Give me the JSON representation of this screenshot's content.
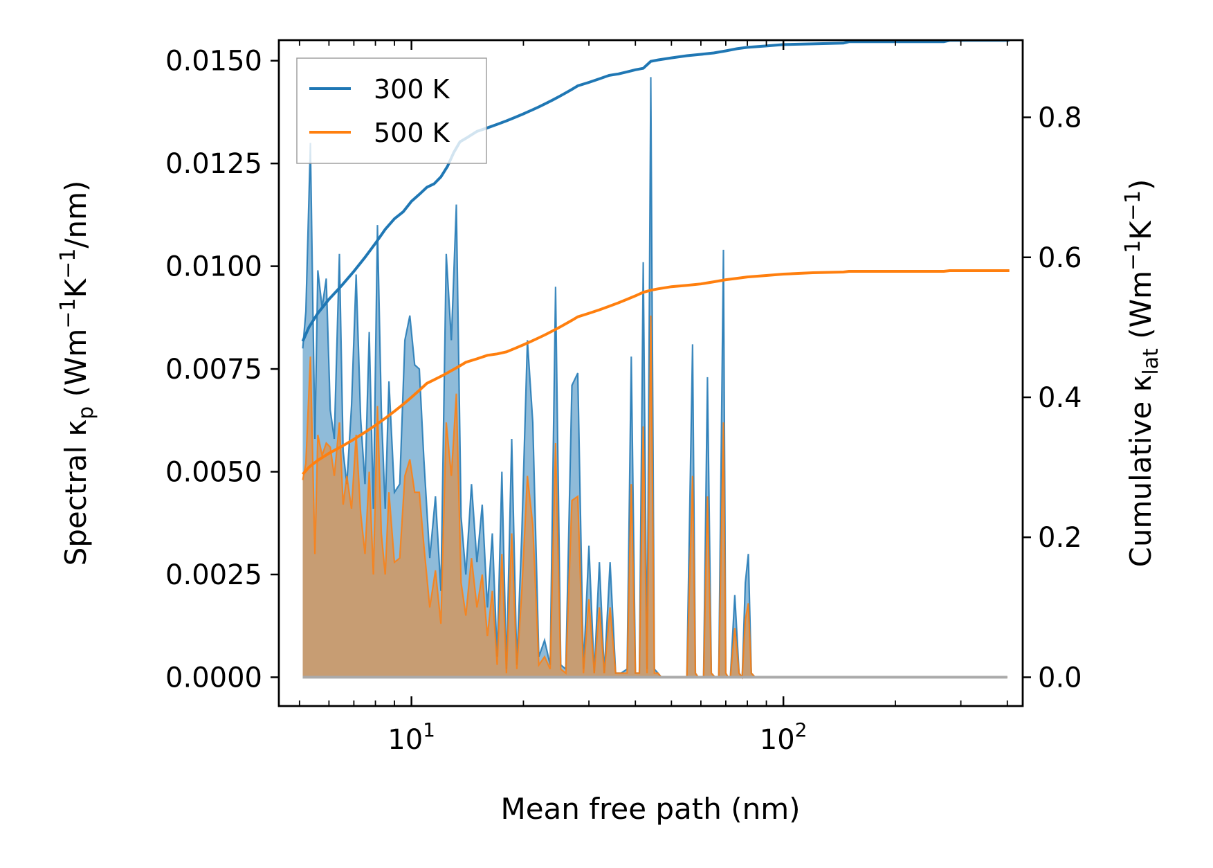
{
  "chart_data": {
    "type": "line",
    "x_scale": "log",
    "xlabel": "Mean free path (nm)",
    "ylabel_left": "Spectral κ_p (Wm⁻¹K⁻¹/nm)",
    "ylabel_left_parts": {
      "pre": "Spectral κ",
      "sub": "p",
      "post1": " (Wm",
      "sup1": "−1",
      "mid": "K",
      "sup2": "−1",
      "post2": "/nm)"
    },
    "ylabel_right": "Cumulative κ_lat (Wm⁻¹K⁻¹)",
    "ylabel_right_parts": {
      "pre": "Cumulative κ",
      "sub": "lat",
      "post1": " (Wm",
      "sup1": "−1",
      "mid": "K",
      "sup2": "−1",
      "post2": ")"
    },
    "xlim": [
      4.4,
      440
    ],
    "ylim_left": [
      -0.0007,
      0.0155
    ],
    "ylim_right": [
      -0.0411,
      0.9103
    ],
    "x_ticks": [
      10,
      100
    ],
    "x_tick_labels": [
      {
        "base": "10",
        "exp": "1"
      },
      {
        "base": "10",
        "exp": "2"
      }
    ],
    "y_ticks_left": [
      0.0,
      0.0025,
      0.005,
      0.0075,
      0.01,
      0.0125,
      0.015
    ],
    "y_tick_labels_left": [
      "0.0000",
      "0.0025",
      "0.0050",
      "0.0075",
      "0.0100",
      "0.0125",
      "0.0150"
    ],
    "y_ticks_right": [
      0.0,
      0.2,
      0.4,
      0.6,
      0.8
    ],
    "y_tick_labels_right": [
      "0.0",
      "0.2",
      "0.4",
      "0.6",
      "0.8"
    ],
    "legend": {
      "position": "top-left",
      "entries": [
        {
          "name": "300 K",
          "color": "#1f77b4"
        },
        {
          "name": "500 K",
          "color": "#ff7f0e"
        }
      ]
    },
    "colors": {
      "300K": "#1f77b4",
      "500K": "#ff7f0e",
      "fill_300K": "#1f77b4",
      "fill_500K": "#ff7f0e",
      "baseline": "#aaaaaa"
    },
    "spectral_300K": {
      "x": [
        5.1,
        5.2,
        5.35,
        5.5,
        5.6,
        5.75,
        5.9,
        6.05,
        6.2,
        6.4,
        6.55,
        6.7,
        6.9,
        7.1,
        7.3,
        7.5,
        7.7,
        7.9,
        8.1,
        8.3,
        8.5,
        8.7,
        9.0,
        9.3,
        9.6,
        9.9,
        10.2,
        10.5,
        10.8,
        11.2,
        11.6,
        12.0,
        12.4,
        12.8,
        13.2,
        13.6,
        14.0,
        14.5,
        15.0,
        15.5,
        16.0,
        16.5,
        17.0,
        17.5,
        18.0,
        18.6,
        19.2,
        19.8,
        20.5,
        21.2,
        22.0,
        22.8,
        23.6,
        24.4,
        25.2,
        26.0,
        27.0,
        28.0,
        29.0,
        30.0,
        31.0,
        32.0,
        33.0,
        34.2,
        35.4,
        36.6,
        38.0,
        39.0,
        40.0,
        41.0,
        42.0,
        43.0,
        44.0,
        45.0,
        46.0,
        47.0,
        48.0,
        55.0,
        57.0,
        58.0,
        59.0,
        61.0,
        62.5,
        64.0,
        65.5,
        67.0,
        69.0,
        70.0,
        71.0,
        72.0,
        74.0,
        76.0,
        77.5,
        79.0,
        80.5,
        82.0,
        84.0,
        86.0,
        88.0,
        90.0,
        92.0,
        94.0,
        96.0,
        98.0,
        145.0,
        148.0,
        150.0,
        152.0,
        155.0,
        270.0,
        274.0,
        278.0,
        282.0,
        286.0,
        380.0,
        388.0,
        394.0,
        400.0
      ],
      "y": [
        0.008,
        0.0089,
        0.013,
        0.0058,
        0.0099,
        0.009,
        0.0097,
        0.0065,
        0.0058,
        0.0103,
        0.0055,
        0.0047,
        0.0066,
        0.0098,
        0.0063,
        0.0047,
        0.0084,
        0.0041,
        0.011,
        0.0065,
        0.0041,
        0.0072,
        0.0045,
        0.0047,
        0.0082,
        0.0088,
        0.0076,
        0.0075,
        0.0053,
        0.0029,
        0.0044,
        0.0021,
        0.0103,
        0.0082,
        0.0115,
        0.0039,
        0.0025,
        0.0047,
        0.0028,
        0.0042,
        0.0017,
        0.0035,
        0.0005,
        0.005,
        0.0002,
        0.0058,
        0.0003,
        0.0035,
        0.0082,
        0.0062,
        0.0005,
        0.0009,
        0.0003,
        0.0095,
        0.0003,
        0.0002,
        0.0071,
        0.0074,
        0.0002,
        0.0032,
        0.0001,
        0.0028,
        0.0001,
        0.0028,
        0.0001,
        0.0001,
        0.0002,
        0.0078,
        0.0001,
        0.0001,
        0.0101,
        0.0002,
        0.0146,
        0.0002,
        0.0001,
        0.0,
        0.0,
        0.0,
        0.0081,
        0.0001,
        0.0,
        0.0,
        0.0073,
        0.0001,
        0.0,
        0.0,
        0.0104,
        0.0001,
        0.0,
        0.0,
        0.002,
        0.0001,
        0.0,
        0.0023,
        0.003,
        0.0001,
        0.0,
        0.0,
        0.0,
        0.0,
        0.0,
        0.0,
        0.0,
        0.0,
        0.0,
        0.0,
        0.0,
        0.0,
        0.0,
        0.0,
        0.0,
        0.0,
        0.0,
        0.0,
        0.0,
        0.0,
        0.0,
        0.0
      ]
    },
    "spectral_500K": {
      "x": [
        5.1,
        5.2,
        5.35,
        5.5,
        5.6,
        5.75,
        5.9,
        6.05,
        6.2,
        6.4,
        6.55,
        6.7,
        6.9,
        7.1,
        7.3,
        7.5,
        7.7,
        7.9,
        8.1,
        8.3,
        8.5,
        8.7,
        9.0,
        9.3,
        9.6,
        9.9,
        10.2,
        10.5,
        10.8,
        11.2,
        11.6,
        12.0,
        12.4,
        12.8,
        13.2,
        13.6,
        14.0,
        14.5,
        15.0,
        15.5,
        16.0,
        16.5,
        17.0,
        17.5,
        18.0,
        18.6,
        19.2,
        19.8,
        20.5,
        21.2,
        22.0,
        22.8,
        23.6,
        24.4,
        25.2,
        26.0,
        27.0,
        28.0,
        29.0,
        30.0,
        31.0,
        32.0,
        33.0,
        34.2,
        35.4,
        36.6,
        38.0,
        39.0,
        40.0,
        41.0,
        42.0,
        43.0,
        44.0,
        45.0,
        46.0,
        47.0,
        48.0,
        55.0,
        57.0,
        58.0,
        59.0,
        61.0,
        62.5,
        64.0,
        65.5,
        67.0,
        69.0,
        70.0,
        71.0,
        72.0,
        74.0,
        76.0,
        77.5,
        79.0,
        80.5,
        82.0,
        84.0,
        86.0,
        88.0,
        90.0,
        92.0,
        94.0,
        96.0,
        98.0,
        145.0,
        148.0,
        150.0,
        152.0,
        155.0,
        270.0,
        274.0,
        278.0,
        282.0,
        286.0,
        380.0,
        388.0,
        394.0,
        400.0
      ],
      "y": [
        0.0048,
        0.0052,
        0.0078,
        0.003,
        0.0059,
        0.0054,
        0.0057,
        0.0056,
        0.0049,
        0.0062,
        0.0042,
        0.0049,
        0.0041,
        0.0059,
        0.004,
        0.003,
        0.005,
        0.0025,
        0.0066,
        0.0035,
        0.0025,
        0.0045,
        0.0028,
        0.0029,
        0.0049,
        0.0053,
        0.0045,
        0.0045,
        0.0032,
        0.0017,
        0.0026,
        0.0013,
        0.0062,
        0.0049,
        0.0069,
        0.0023,
        0.0015,
        0.0029,
        0.0017,
        0.0025,
        0.001,
        0.0021,
        0.0003,
        0.003,
        0.0001,
        0.0035,
        0.0002,
        0.0021,
        0.0049,
        0.0037,
        0.0003,
        0.0005,
        0.0002,
        0.0057,
        0.0002,
        0.0001,
        0.0043,
        0.0044,
        0.0001,
        0.0019,
        0.0001,
        0.0017,
        0.0001,
        0.0017,
        0.0001,
        0.0001,
        0.0001,
        0.0047,
        0.0001,
        0.0001,
        0.0061,
        0.0001,
        0.0088,
        0.0001,
        0.0001,
        0.0,
        0.0,
        0.0,
        0.0049,
        0.0001,
        0.0,
        0.0,
        0.0044,
        0.0001,
        0.0,
        0.0,
        0.0062,
        0.0001,
        0.0,
        0.0,
        0.0012,
        0.0001,
        0.0,
        0.0014,
        0.0018,
        0.0001,
        0.0,
        0.0,
        0.0,
        0.0,
        0.0,
        0.0,
        0.0,
        0.0,
        0.0,
        0.0,
        0.0,
        0.0,
        0.0,
        0.0,
        0.0,
        0.0,
        0.0,
        0.0,
        0.0,
        0.0,
        0.0,
        0.0
      ]
    },
    "cumulative_300K": {
      "x": [
        5.1,
        5.3,
        5.6,
        6.0,
        6.5,
        7.0,
        7.5,
        8.0,
        8.5,
        9.0,
        9.5,
        10.0,
        10.5,
        11.0,
        11.5,
        12.0,
        12.5,
        13.0,
        13.5,
        14.0,
        15.0,
        16.0,
        17.0,
        18.0,
        19.0,
        20.0,
        21.0,
        22.0,
        23.0,
        24.0,
        25.0,
        26.0,
        27.0,
        28.0,
        30.0,
        32.0,
        34.0,
        36.0,
        38.0,
        40.0,
        42.0,
        44.0,
        46.0,
        50.0,
        55.0,
        60.0,
        65.0,
        70.0,
        75.0,
        80.0,
        90.0,
        100.0,
        120.0,
        145.0,
        150.0,
        200.0,
        270.0,
        280.0,
        350.0,
        385.0,
        395.0,
        405.0
      ],
      "y": [
        0.48,
        0.5,
        0.52,
        0.54,
        0.56,
        0.58,
        0.6,
        0.62,
        0.64,
        0.655,
        0.665,
        0.68,
        0.69,
        0.7,
        0.705,
        0.715,
        0.73,
        0.75,
        0.765,
        0.77,
        0.78,
        0.785,
        0.79,
        0.795,
        0.8,
        0.805,
        0.81,
        0.815,
        0.82,
        0.825,
        0.83,
        0.835,
        0.84,
        0.845,
        0.85,
        0.855,
        0.86,
        0.862,
        0.865,
        0.868,
        0.87,
        0.88,
        0.882,
        0.885,
        0.888,
        0.89,
        0.892,
        0.895,
        0.898,
        0.9,
        0.902,
        0.904,
        0.905,
        0.906,
        0.908,
        0.908,
        0.908,
        0.91,
        0.91,
        0.91,
        0.91,
        0.91
      ]
    },
    "cumulative_500K": {
      "x": [
        5.1,
        5.3,
        5.6,
        6.0,
        6.5,
        7.0,
        7.5,
        8.0,
        8.5,
        9.0,
        9.5,
        10.0,
        10.5,
        11.0,
        11.5,
        12.0,
        12.5,
        13.0,
        13.5,
        14.0,
        15.0,
        16.0,
        17.0,
        18.0,
        19.0,
        20.0,
        21.0,
        22.0,
        23.0,
        24.0,
        25.0,
        26.0,
        27.0,
        28.0,
        30.0,
        32.0,
        34.0,
        36.0,
        38.0,
        40.0,
        42.0,
        44.0,
        46.0,
        50.0,
        55.0,
        60.0,
        65.0,
        70.0,
        75.0,
        80.0,
        90.0,
        100.0,
        120.0,
        145.0,
        150.0,
        200.0,
        270.0,
        280.0,
        350.0,
        385.0,
        395.0,
        405.0
      ],
      "y": [
        0.29,
        0.3,
        0.31,
        0.32,
        0.33,
        0.34,
        0.35,
        0.36,
        0.37,
        0.38,
        0.39,
        0.4,
        0.41,
        0.42,
        0.425,
        0.43,
        0.435,
        0.44,
        0.445,
        0.45,
        0.455,
        0.46,
        0.462,
        0.465,
        0.47,
        0.475,
        0.48,
        0.485,
        0.49,
        0.495,
        0.5,
        0.505,
        0.51,
        0.515,
        0.52,
        0.525,
        0.53,
        0.535,
        0.54,
        0.545,
        0.55,
        0.553,
        0.555,
        0.558,
        0.56,
        0.562,
        0.565,
        0.568,
        0.57,
        0.572,
        0.574,
        0.576,
        0.578,
        0.579,
        0.58,
        0.58,
        0.58,
        0.581,
        0.581,
        0.581,
        0.581,
        0.581
      ]
    }
  }
}
